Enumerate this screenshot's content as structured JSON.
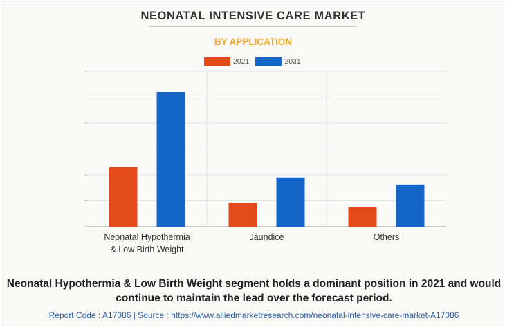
{
  "title": "NEONATAL INTENSIVE CARE MARKET",
  "subtitle": "BY APPLICATION",
  "caption": "Neonatal Hypothermia & Low Birth Weight segment holds a dominant position in 2021 and would continue to maintain the lead over the forecast period.",
  "footer": "Report Code : A17086  |  Source : https://www.alliedmarketresearch.com/neonatal-intensive-care-market-A17086",
  "colors": {
    "2021": "#e34a1a",
    "2031": "#1565c8",
    "subtitle": "#f5a623"
  },
  "chart_data": {
    "type": "bar",
    "categories": [
      [
        "Neonatal Hypothermia",
        "& Low Birth Weight"
      ],
      [
        "Jaundice"
      ],
      [
        "Others"
      ]
    ],
    "series": [
      {
        "name": "2021",
        "values": [
          2.3,
          0.93,
          0.75
        ]
      },
      {
        "name": "2031",
        "values": [
          5.2,
          1.9,
          1.63
        ]
      }
    ],
    "ylim": [
      0,
      6
    ],
    "y_ticks": [
      0,
      1,
      2,
      3,
      4,
      5,
      6
    ],
    "grid": true,
    "legend_position": "top-center"
  }
}
